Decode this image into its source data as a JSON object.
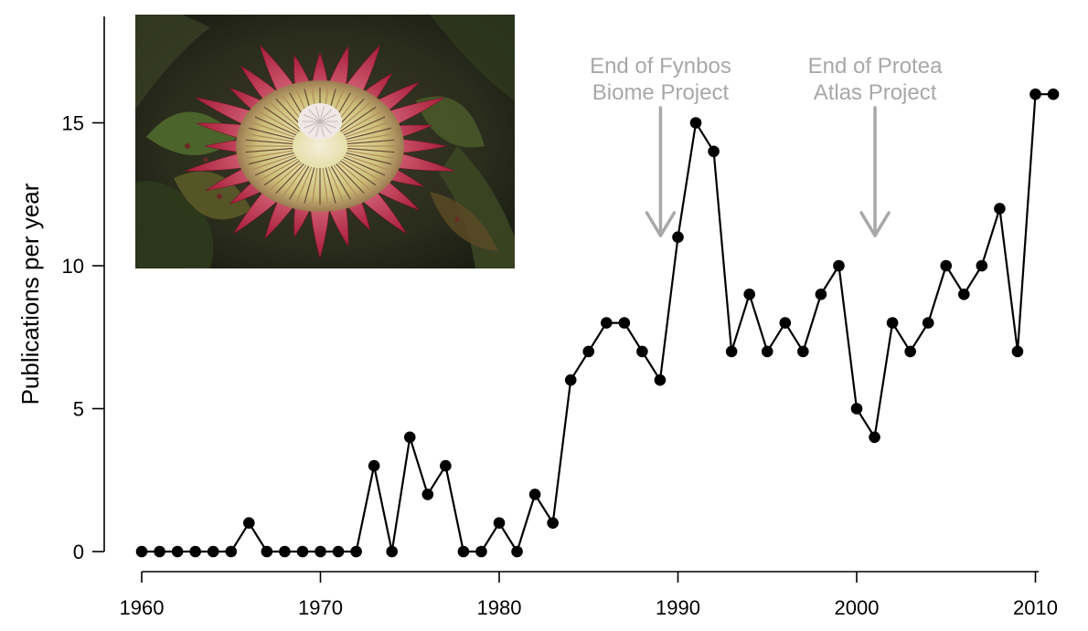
{
  "chart_data": {
    "type": "line",
    "xlabel": "",
    "ylabel": "Publications per year",
    "xlim": [
      1960,
      2011
    ],
    "ylim": [
      0,
      17
    ],
    "x_ticks": [
      "1960",
      "1970",
      "1980",
      "1990",
      "2000",
      "2010"
    ],
    "y_ticks": [
      "0",
      "5",
      "10",
      "15"
    ],
    "grid": false,
    "series": [
      {
        "x": [
          1960,
          1961,
          1962,
          1963,
          1964,
          1965,
          1966,
          1967,
          1968,
          1969,
          1970,
          1971,
          1972,
          1973,
          1974,
          1975,
          1976,
          1977,
          1978,
          1979,
          1980,
          1981,
          1982,
          1983,
          1984,
          1985,
          1986,
          1987,
          1988,
          1989,
          1990,
          1991,
          1992,
          1993,
          1994,
          1995,
          1996,
          1997,
          1998,
          1999,
          2000,
          2001,
          2002,
          2003,
          2004,
          2005,
          2006,
          2007,
          2008,
          2009,
          2010,
          2011
        ],
        "values": [
          0,
          0,
          0,
          0,
          0,
          0,
          1,
          0,
          0,
          0,
          0,
          0,
          0,
          3,
          0,
          4,
          2,
          3,
          0,
          0,
          1,
          0,
          2,
          1,
          6,
          7,
          8,
          8,
          7,
          6,
          11,
          15,
          14,
          7,
          9,
          7,
          8,
          7,
          9,
          10,
          5,
          4,
          8,
          7,
          8,
          10,
          9,
          10,
          12,
          7,
          16,
          16
        ]
      }
    ],
    "annotations": [
      {
        "lines": [
          "End of Fynbos",
          "Biome Project"
        ],
        "x": 1989
      },
      {
        "lines": [
          "End of Protea",
          "Atlas Project"
        ],
        "x": 2001
      }
    ]
  },
  "inset_photo": {
    "icon": "protea-flower-photo"
  }
}
